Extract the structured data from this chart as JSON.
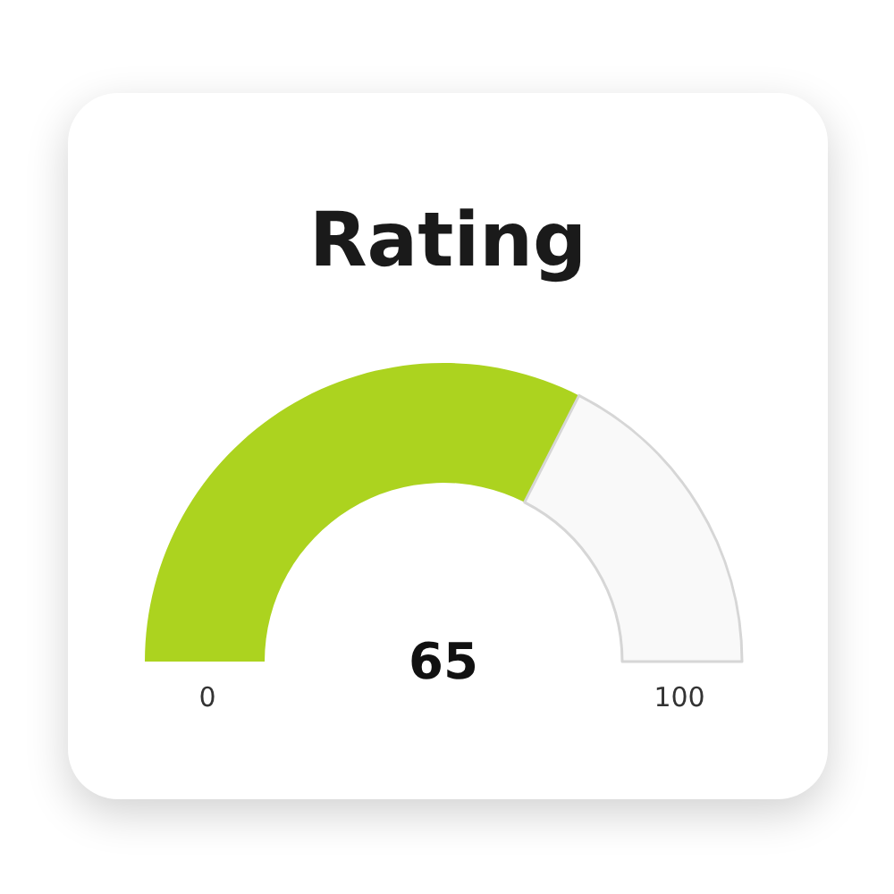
{
  "chart_data": {
    "type": "donut",
    "title": "Rating",
    "categories": [
      null,
      null
    ],
    "values": [
      65,
      35
    ],
    "colors": [
      "#acd31f",
      "#f9f9f9"
    ],
    "value_labels": [
      "65",
      null
    ],
    "annotations": [
      "0",
      "100"
    ]
  }
}
